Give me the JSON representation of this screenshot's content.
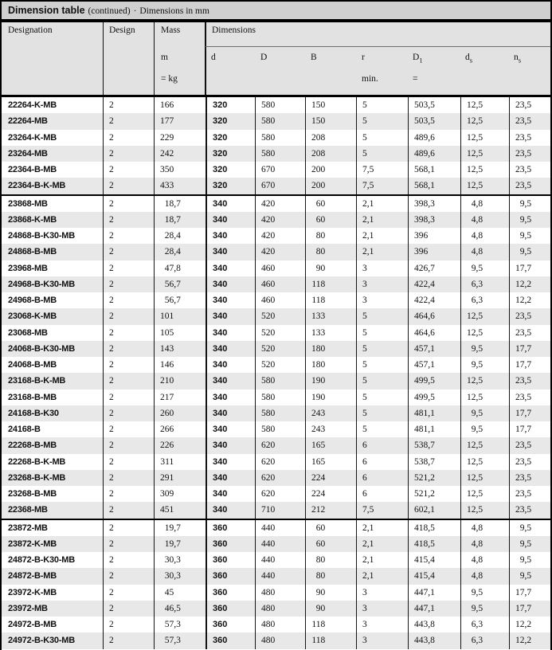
{
  "title": {
    "main": "Dimension table",
    "continued": "(continued)",
    "separator": "·",
    "note": "Dimensions in mm"
  },
  "header": {
    "designation": "Designation",
    "design": "Design",
    "mass": "Mass",
    "mass_symbol": "m",
    "mass_unit": "= kg",
    "dimensions": "Dimensions",
    "cols": [
      {
        "label": "d"
      },
      {
        "label": "D"
      },
      {
        "label": "B"
      },
      {
        "label": "r",
        "note": "min."
      },
      {
        "label": "D",
        "sub": "1",
        "note": "="
      },
      {
        "label": "d",
        "sub": "s"
      },
      {
        "label": "n",
        "sub": "s"
      }
    ]
  },
  "table": {
    "groups": [
      {
        "d": "320",
        "rows": [
          {
            "designation": "22264-K-MB",
            "design": "2",
            "mass": "166",
            "d": "320",
            "D": "580",
            "B": "150",
            "r": "5",
            "D1": "503,5",
            "ds": "12,5",
            "ns": "23,5"
          },
          {
            "designation": "22264-MB",
            "design": "2",
            "mass": "177",
            "d": "320",
            "D": "580",
            "B": "150",
            "r": "5",
            "D1": "503,5",
            "ds": "12,5",
            "ns": "23,5"
          },
          {
            "designation": "23264-K-MB",
            "design": "2",
            "mass": "229",
            "d": "320",
            "D": "580",
            "B": "208",
            "r": "5",
            "D1": "489,6",
            "ds": "12,5",
            "ns": "23,5"
          },
          {
            "designation": "23264-MB",
            "design": "2",
            "mass": "242",
            "d": "320",
            "D": "580",
            "B": "208",
            "r": "5",
            "D1": "489,6",
            "ds": "12,5",
            "ns": "23,5"
          },
          {
            "designation": "22364-B-MB",
            "design": "2",
            "mass": "350",
            "d": "320",
            "D": "670",
            "B": "200",
            "r": "7,5",
            "D1": "568,1",
            "ds": "12,5",
            "ns": "23,5"
          },
          {
            "designation": "22364-B-K-MB",
            "design": "2",
            "mass": "433",
            "d": "320",
            "D": "670",
            "B": "200",
            "r": "7,5",
            "D1": "568,1",
            "ds": "12,5",
            "ns": "23,5"
          }
        ]
      },
      {
        "d": "340",
        "rows": [
          {
            "designation": "23868-MB",
            "design": "2",
            "mass": "18,7",
            "d": "340",
            "D": "420",
            "B": "60",
            "r": "2,1",
            "D1": "398,3",
            "ds": "4,8",
            "ns": "9,5"
          },
          {
            "designation": "23868-K-MB",
            "design": "2",
            "mass": "18,7",
            "d": "340",
            "D": "420",
            "B": "60",
            "r": "2,1",
            "D1": "398,3",
            "ds": "4,8",
            "ns": "9,5"
          },
          {
            "designation": "24868-B-K30-MB",
            "design": "2",
            "mass": "28,4",
            "d": "340",
            "D": "420",
            "B": "80",
            "r": "2,1",
            "D1": "396",
            "ds": "4,8",
            "ns": "9,5"
          },
          {
            "designation": "24868-B-MB",
            "design": "2",
            "mass": "28,4",
            "d": "340",
            "D": "420",
            "B": "80",
            "r": "2,1",
            "D1": "396",
            "ds": "4,8",
            "ns": "9,5"
          },
          {
            "designation": "23968-MB",
            "design": "2",
            "mass": "47,8",
            "d": "340",
            "D": "460",
            "B": "90",
            "r": "3",
            "D1": "426,7",
            "ds": "9,5",
            "ns": "17,7"
          },
          {
            "designation": "24968-B-K30-MB",
            "design": "2",
            "mass": "56,7",
            "d": "340",
            "D": "460",
            "B": "118",
            "r": "3",
            "D1": "422,4",
            "ds": "6,3",
            "ns": "12,2"
          },
          {
            "designation": "24968-B-MB",
            "design": "2",
            "mass": "56,7",
            "d": "340",
            "D": "460",
            "B": "118",
            "r": "3",
            "D1": "422,4",
            "ds": "6,3",
            "ns": "12,2"
          },
          {
            "designation": "23068-K-MB",
            "design": "2",
            "mass": "101",
            "d": "340",
            "D": "520",
            "B": "133",
            "r": "5",
            "D1": "464,6",
            "ds": "12,5",
            "ns": "23,5"
          },
          {
            "designation": "23068-MB",
            "design": "2",
            "mass": "105",
            "d": "340",
            "D": "520",
            "B": "133",
            "r": "5",
            "D1": "464,6",
            "ds": "12,5",
            "ns": "23,5"
          },
          {
            "designation": "24068-B-K30-MB",
            "design": "2",
            "mass": "143",
            "d": "340",
            "D": "520",
            "B": "180",
            "r": "5",
            "D1": "457,1",
            "ds": "9,5",
            "ns": "17,7"
          },
          {
            "designation": "24068-B-MB",
            "design": "2",
            "mass": "146",
            "d": "340",
            "D": "520",
            "B": "180",
            "r": "5",
            "D1": "457,1",
            "ds": "9,5",
            "ns": "17,7"
          },
          {
            "designation": "23168-B-K-MB",
            "design": "2",
            "mass": "210",
            "d": "340",
            "D": "580",
            "B": "190",
            "r": "5",
            "D1": "499,5",
            "ds": "12,5",
            "ns": "23,5"
          },
          {
            "designation": "23168-B-MB",
            "design": "2",
            "mass": "217",
            "d": "340",
            "D": "580",
            "B": "190",
            "r": "5",
            "D1": "499,5",
            "ds": "12,5",
            "ns": "23,5"
          },
          {
            "designation": "24168-B-K30",
            "design": "2",
            "mass": "260",
            "d": "340",
            "D": "580",
            "B": "243",
            "r": "5",
            "D1": "481,1",
            "ds": "9,5",
            "ns": "17,7"
          },
          {
            "designation": "24168-B",
            "design": "2",
            "mass": "266",
            "d": "340",
            "D": "580",
            "B": "243",
            "r": "5",
            "D1": "481,1",
            "ds": "9,5",
            "ns": "17,7"
          },
          {
            "designation": "22268-B-MB",
            "design": "2",
            "mass": "226",
            "d": "340",
            "D": "620",
            "B": "165",
            "r": "6",
            "D1": "538,7",
            "ds": "12,5",
            "ns": "23,5"
          },
          {
            "designation": "22268-B-K-MB",
            "design": "2",
            "mass": "311",
            "d": "340",
            "D": "620",
            "B": "165",
            "r": "6",
            "D1": "538,7",
            "ds": "12,5",
            "ns": "23,5"
          },
          {
            "designation": "23268-B-K-MB",
            "design": "2",
            "mass": "291",
            "d": "340",
            "D": "620",
            "B": "224",
            "r": "6",
            "D1": "521,2",
            "ds": "12,5",
            "ns": "23,5"
          },
          {
            "designation": "23268-B-MB",
            "design": "2",
            "mass": "309",
            "d": "340",
            "D": "620",
            "B": "224",
            "r": "6",
            "D1": "521,2",
            "ds": "12,5",
            "ns": "23,5"
          },
          {
            "designation": "22368-MB",
            "design": "2",
            "mass": "451",
            "d": "340",
            "D": "710",
            "B": "212",
            "r": "7,5",
            "D1": "602,1",
            "ds": "12,5",
            "ns": "23,5"
          }
        ]
      },
      {
        "d": "360",
        "rows": [
          {
            "designation": "23872-MB",
            "design": "2",
            "mass": "19,7",
            "d": "360",
            "D": "440",
            "B": "60",
            "r": "2,1",
            "D1": "418,5",
            "ds": "4,8",
            "ns": "9,5"
          },
          {
            "designation": "23872-K-MB",
            "design": "2",
            "mass": "19,7",
            "d": "360",
            "D": "440",
            "B": "60",
            "r": "2,1",
            "D1": "418,5",
            "ds": "4,8",
            "ns": "9,5"
          },
          {
            "designation": "24872-B-K30-MB",
            "design": "2",
            "mass": "30,3",
            "d": "360",
            "D": "440",
            "B": "80",
            "r": "2,1",
            "D1": "415,4",
            "ds": "4,8",
            "ns": "9,5"
          },
          {
            "designation": "24872-B-MB",
            "design": "2",
            "mass": "30,3",
            "d": "360",
            "D": "440",
            "B": "80",
            "r": "2,1",
            "D1": "415,4",
            "ds": "4,8",
            "ns": "9,5"
          },
          {
            "designation": "23972-K-MB",
            "design": "2",
            "mass": "45",
            "d": "360",
            "D": "480",
            "B": "90",
            "r": "3",
            "D1": "447,1",
            "ds": "9,5",
            "ns": "17,7"
          },
          {
            "designation": "23972-MB",
            "design": "2",
            "mass": "46,5",
            "d": "360",
            "D": "480",
            "B": "90",
            "r": "3",
            "D1": "447,1",
            "ds": "9,5",
            "ns": "17,7"
          },
          {
            "designation": "24972-B-MB",
            "design": "2",
            "mass": "57,3",
            "d": "360",
            "D": "480",
            "B": "118",
            "r": "3",
            "D1": "443,8",
            "ds": "6,3",
            "ns": "12,2"
          },
          {
            "designation": "24972-B-K30-MB",
            "design": "2",
            "mass": "57,3",
            "d": "360",
            "D": "480",
            "B": "118",
            "r": "3",
            "D1": "443,8",
            "ds": "6,3",
            "ns": "12,2"
          }
        ]
      }
    ]
  }
}
